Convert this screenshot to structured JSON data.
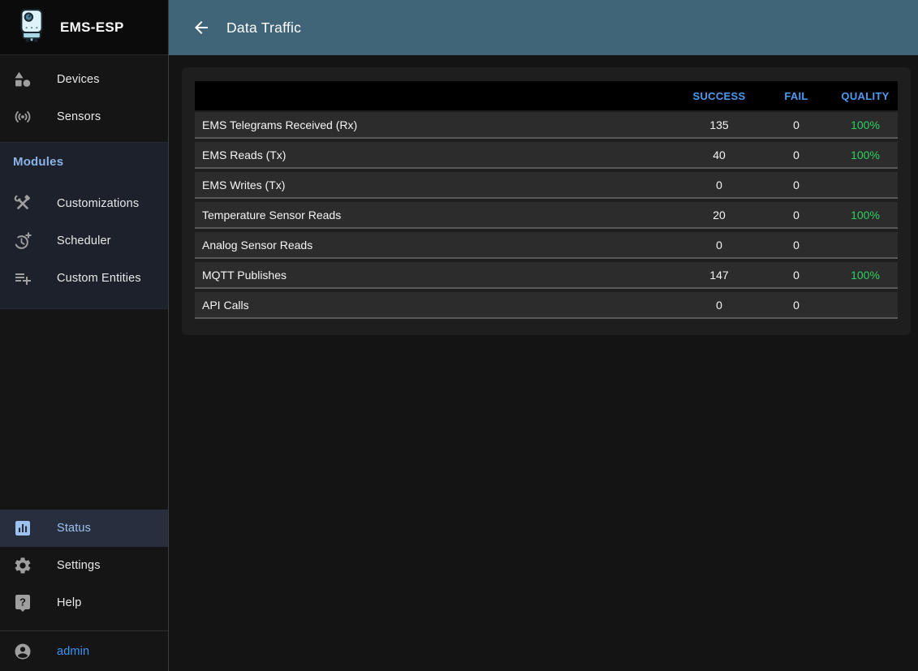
{
  "app": {
    "title": "EMS-ESP",
    "logo_icon": "boiler-logo-icon"
  },
  "header": {
    "title": "Data Traffic",
    "back_icon": "arrow-back-icon"
  },
  "sidebar": {
    "main_items": [
      {
        "label": "Devices",
        "icon": "category-icon"
      },
      {
        "label": "Sensors",
        "icon": "sensors-icon"
      }
    ],
    "modules": {
      "label": "Modules",
      "items": [
        {
          "label": "Customizations",
          "icon": "construction-icon"
        },
        {
          "label": "Scheduler",
          "icon": "more-time-icon"
        },
        {
          "label": "Custom Entities",
          "icon": "playlist-add-icon"
        }
      ]
    },
    "bottom_items": [
      {
        "label": "Status",
        "icon": "analytics-icon",
        "selected": true
      },
      {
        "label": "Settings",
        "icon": "gear-icon",
        "selected": false
      },
      {
        "label": "Help",
        "icon": "live-help-icon",
        "selected": false
      }
    ],
    "user": {
      "label": "admin",
      "icon": "account-circle-icon"
    }
  },
  "table": {
    "columns": [
      "",
      "SUCCESS",
      "FAIL",
      "QUALITY"
    ],
    "rows": [
      {
        "label": "EMS Telegrams Received (Rx)",
        "success": "135",
        "fail": "0",
        "quality": "100%"
      },
      {
        "label": "EMS Reads (Tx)",
        "success": "40",
        "fail": "0",
        "quality": "100%"
      },
      {
        "label": "EMS Writes (Tx)",
        "success": "0",
        "fail": "0",
        "quality": ""
      },
      {
        "label": "Temperature Sensor Reads",
        "success": "20",
        "fail": "0",
        "quality": "100%"
      },
      {
        "label": "Analog Sensor Reads",
        "success": "0",
        "fail": "0",
        "quality": ""
      },
      {
        "label": "MQTT Publishes",
        "success": "147",
        "fail": "0",
        "quality": "100%"
      },
      {
        "label": "API Calls",
        "success": "0",
        "fail": "0",
        "quality": ""
      }
    ]
  },
  "colors": {
    "appbar_bg": "#406579",
    "column_header_blue": "#4e9bf2",
    "quality_green": "#2bd162",
    "admin_link_blue": "#3b95f5",
    "selected_item_bg": "#272e3d",
    "modules_section_bg": "#1c212c",
    "row_bg": "#2c2c2c",
    "table_header_bg": "#000000"
  }
}
